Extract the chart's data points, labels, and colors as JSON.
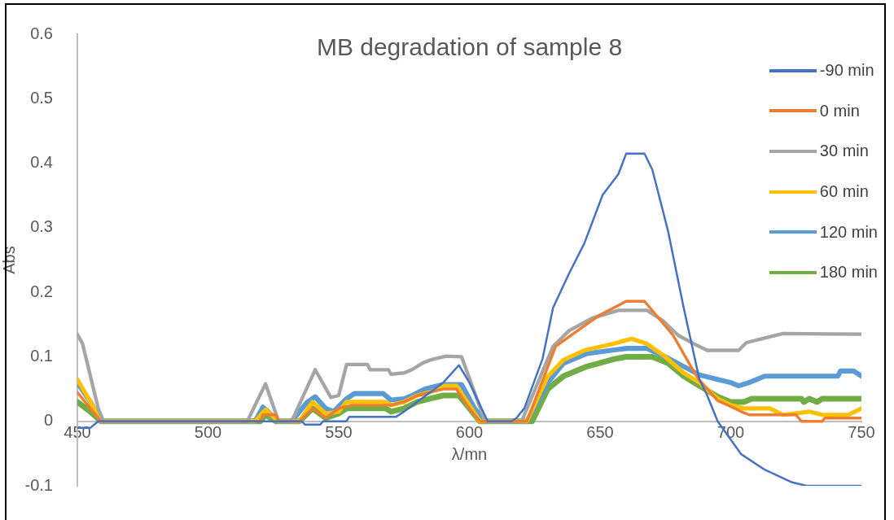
{
  "chart_data": {
    "type": "line",
    "title": "MB degradation of sample 8",
    "xlabel": "λ/mn",
    "ylabel": "Abs",
    "xlim": [
      450,
      750
    ],
    "xticks": [
      450,
      500,
      550,
      600,
      650,
      700,
      750
    ],
    "ylim": [
      -0.1,
      0.6
    ],
    "yticks": [
      -0.1,
      0,
      0.1,
      0.2,
      0.3,
      0.4,
      0.5,
      0.6
    ],
    "grid": false,
    "legend": "top right",
    "marker": "none",
    "line_style": "solid",
    "series": [
      {
        "name": "-90 min",
        "color": "#4472c4",
        "x": [
          450,
          455,
          458,
          536,
          537,
          543,
          544,
          553,
          554,
          572,
          575,
          580,
          585,
          590,
          596,
          600,
          607,
          616,
          618,
          621,
          628,
          632,
          638,
          644,
          651,
          657,
          660,
          667,
          670,
          676,
          682,
          688,
          691,
          695,
          704,
          713,
          723,
          729,
          750
        ],
        "values": [
          -0.01,
          -0.01,
          0,
          0,
          -0.005,
          -0.005,
          0,
          0,
          0.007,
          0.007,
          0.015,
          0.03,
          0.045,
          0.06,
          0.087,
          0.06,
          0,
          0,
          0.005,
          0.02,
          0.097,
          0.176,
          0.228,
          0.276,
          0.351,
          0.383,
          0.415,
          0.415,
          0.39,
          0.295,
          0.176,
          0.065,
          0.04,
          0,
          -0.051,
          -0.075,
          -0.094,
          -0.1,
          -0.1
        ]
      },
      {
        "name": "0 min",
        "color": "#ed7d31",
        "x": [
          450,
          455,
          459,
          520,
          521,
          526,
          527,
          535,
          540,
          545,
          550,
          555,
          570,
          575,
          580,
          590,
          595,
          600,
          604,
          622,
          633,
          644,
          650,
          660,
          667,
          678,
          686,
          688,
          695,
          700,
          704,
          707,
          725,
          727,
          735,
          736,
          750
        ],
        "values": [
          0.045,
          0.02,
          0,
          0,
          0.01,
          0.01,
          0,
          0,
          0.02,
          0.005,
          0.02,
          0.025,
          0.025,
          0.03,
          0.04,
          0.05,
          0.05,
          0.02,
          0,
          0,
          0.116,
          0.148,
          0.165,
          0.186,
          0.186,
          0.133,
          0.076,
          0.064,
          0.032,
          0.023,
          0.015,
          0.01,
          0.01,
          0,
          0,
          0.005,
          0.005
        ]
      },
      {
        "name": "30 min",
        "color": "#a5a5a5",
        "x": [
          450,
          452,
          455,
          458,
          460,
          515,
          522,
          527,
          532,
          541,
          547,
          550,
          553,
          561,
          562,
          569,
          570,
          575,
          578,
          582,
          585,
          591,
          597,
          606,
          620,
          632,
          638,
          647,
          657,
          668,
          674,
          680,
          686,
          691,
          703,
          706,
          714,
          720,
          750
        ],
        "values": [
          0.135,
          0.12,
          0.07,
          0.02,
          0,
          0,
          0.058,
          0,
          0,
          0.08,
          0.037,
          0.04,
          0.088,
          0.088,
          0.08,
          0.08,
          0.073,
          0.075,
          0.08,
          0.09,
          0.095,
          0.101,
          0.1,
          0,
          0,
          0.116,
          0.14,
          0.16,
          0.172,
          0.172,
          0.156,
          0.133,
          0.12,
          0.11,
          0.11,
          0.122,
          0.13,
          0.136,
          0.135
        ]
      },
      {
        "name": "60 min",
        "color": "#ffc000",
        "x": [
          450,
          455,
          459,
          518,
          522,
          527,
          535,
          540,
          545,
          550,
          553,
          568,
          570,
          575,
          580,
          585,
          590,
          595,
          600,
          604,
          622,
          630,
          636,
          644,
          655,
          662,
          668,
          675,
          682,
          688,
          695,
          700,
          705,
          715,
          720,
          730,
          735,
          745,
          750
        ],
        "values": [
          0.065,
          0.03,
          0,
          0,
          0.018,
          0,
          0,
          0.03,
          0.012,
          0.015,
          0.03,
          0.03,
          0.025,
          0.03,
          0.04,
          0.045,
          0.055,
          0.055,
          0.025,
          0,
          0,
          0.07,
          0.095,
          0.11,
          0.12,
          0.128,
          0.12,
          0.1,
          0.075,
          0.06,
          0.035,
          0.025,
          0.02,
          0.02,
          0.01,
          0.015,
          0.01,
          0.01,
          0.02
        ]
      },
      {
        "name": "120 min",
        "color": "#5b9bd5",
        "x": [
          450,
          455,
          459,
          518,
          521,
          527,
          532,
          538,
          541,
          545,
          548,
          553,
          556,
          567,
          570,
          575,
          578,
          583,
          590,
          597,
          602,
          606,
          622,
          630,
          636,
          645,
          660,
          668,
          675,
          682,
          688,
          695,
          700,
          703,
          707,
          713,
          741,
          742,
          747,
          750
        ],
        "values": [
          0.06,
          0.03,
          0,
          0,
          0.022,
          0,
          0,
          0.03,
          0.038,
          0.02,
          0.015,
          0.035,
          0.043,
          0.043,
          0.033,
          0.035,
          0.04,
          0.05,
          0.057,
          0.057,
          0.02,
          0,
          0,
          0.06,
          0.09,
          0.105,
          0.113,
          0.113,
          0.1,
          0.085,
          0.072,
          0.065,
          0.06,
          0.055,
          0.06,
          0.07,
          0.07,
          0.078,
          0.078,
          0.07
        ]
      },
      {
        "name": "180 min",
        "color": "#70ad47",
        "x": [
          450,
          455,
          459,
          520,
          522,
          526,
          535,
          540,
          545,
          550,
          553,
          568,
          570,
          575,
          580,
          585,
          590,
          596,
          600,
          604,
          624,
          630,
          636,
          645,
          655,
          660,
          670,
          676,
          682,
          688,
          695,
          700,
          705,
          708,
          727,
          728,
          730,
          733,
          735,
          750
        ],
        "values": [
          0.03,
          0.015,
          0,
          0,
          0.01,
          0,
          0,
          0.02,
          0.005,
          0.012,
          0.02,
          0.02,
          0.015,
          0.02,
          0.03,
          0.035,
          0.04,
          0.04,
          0.02,
          0,
          0,
          0.05,
          0.07,
          0.085,
          0.096,
          0.1,
          0.1,
          0.09,
          0.07,
          0.055,
          0.038,
          0.03,
          0.03,
          0.035,
          0.035,
          0.03,
          0.035,
          0.03,
          0.035,
          0.035
        ]
      }
    ]
  }
}
